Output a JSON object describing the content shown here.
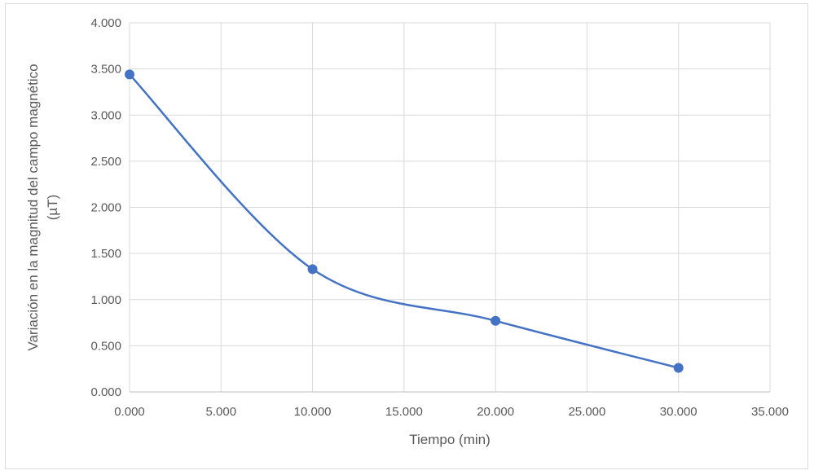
{
  "chart_data": {
    "type": "scatter",
    "title": "",
    "xlabel": "Tiempo (min)",
    "ylabel_lines": [
      "Variación en la magnitud del campo magnético",
      "(µT)"
    ],
    "x_ticks": [
      "0.000",
      "5.000",
      "10.000",
      "15.000",
      "20.000",
      "25.000",
      "30.000",
      "35.000"
    ],
    "y_ticks": [
      "0.000",
      "0.500",
      "1.000",
      "1.500",
      "2.000",
      "2.500",
      "3.000",
      "3.500",
      "4.000"
    ],
    "xlim": [
      0,
      35
    ],
    "ylim": [
      0,
      4
    ],
    "grid": true,
    "legend": "none",
    "series": [
      {
        "x": [
          0,
          10,
          20,
          30
        ],
        "y": [
          3.44,
          1.33,
          0.77,
          0.26
        ],
        "color": "#4472c4",
        "smooth": true
      }
    ]
  }
}
